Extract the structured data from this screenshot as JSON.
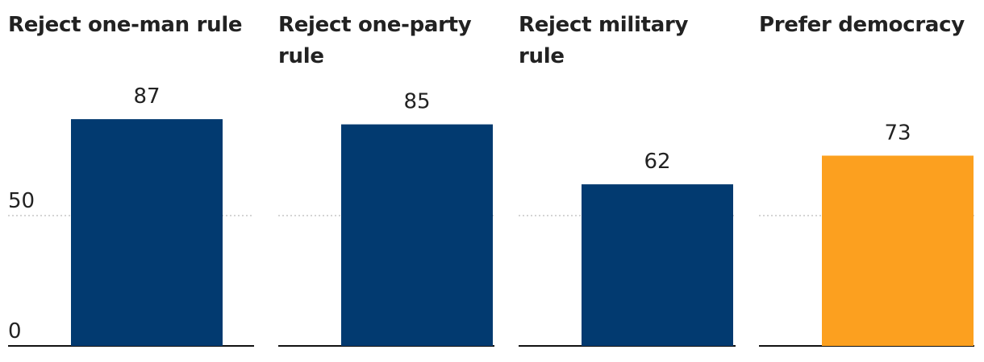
{
  "chart_data": [
    {
      "type": "bar",
      "title": "Reject one-man rule",
      "values": [
        87
      ],
      "color": "#023a70",
      "ylim": [
        0,
        100
      ],
      "yticks": [
        0,
        50
      ],
      "y_axis_labels": true
    },
    {
      "type": "bar",
      "title": "Reject one-party rule",
      "values": [
        85
      ],
      "color": "#023a70",
      "ylim": [
        0,
        100
      ],
      "yticks": [
        0,
        50
      ],
      "y_axis_labels": false
    },
    {
      "type": "bar",
      "title": "Reject military rule",
      "values": [
        62
      ],
      "color": "#023a70",
      "ylim": [
        0,
        100
      ],
      "yticks": [
        0,
        50
      ],
      "y_axis_labels": false
    },
    {
      "type": "bar",
      "title": "Prefer democracy",
      "values": [
        73
      ],
      "color": "#fca01f",
      "ylim": [
        0,
        100
      ],
      "yticks": [
        0,
        50
      ],
      "y_axis_labels": false
    }
  ]
}
